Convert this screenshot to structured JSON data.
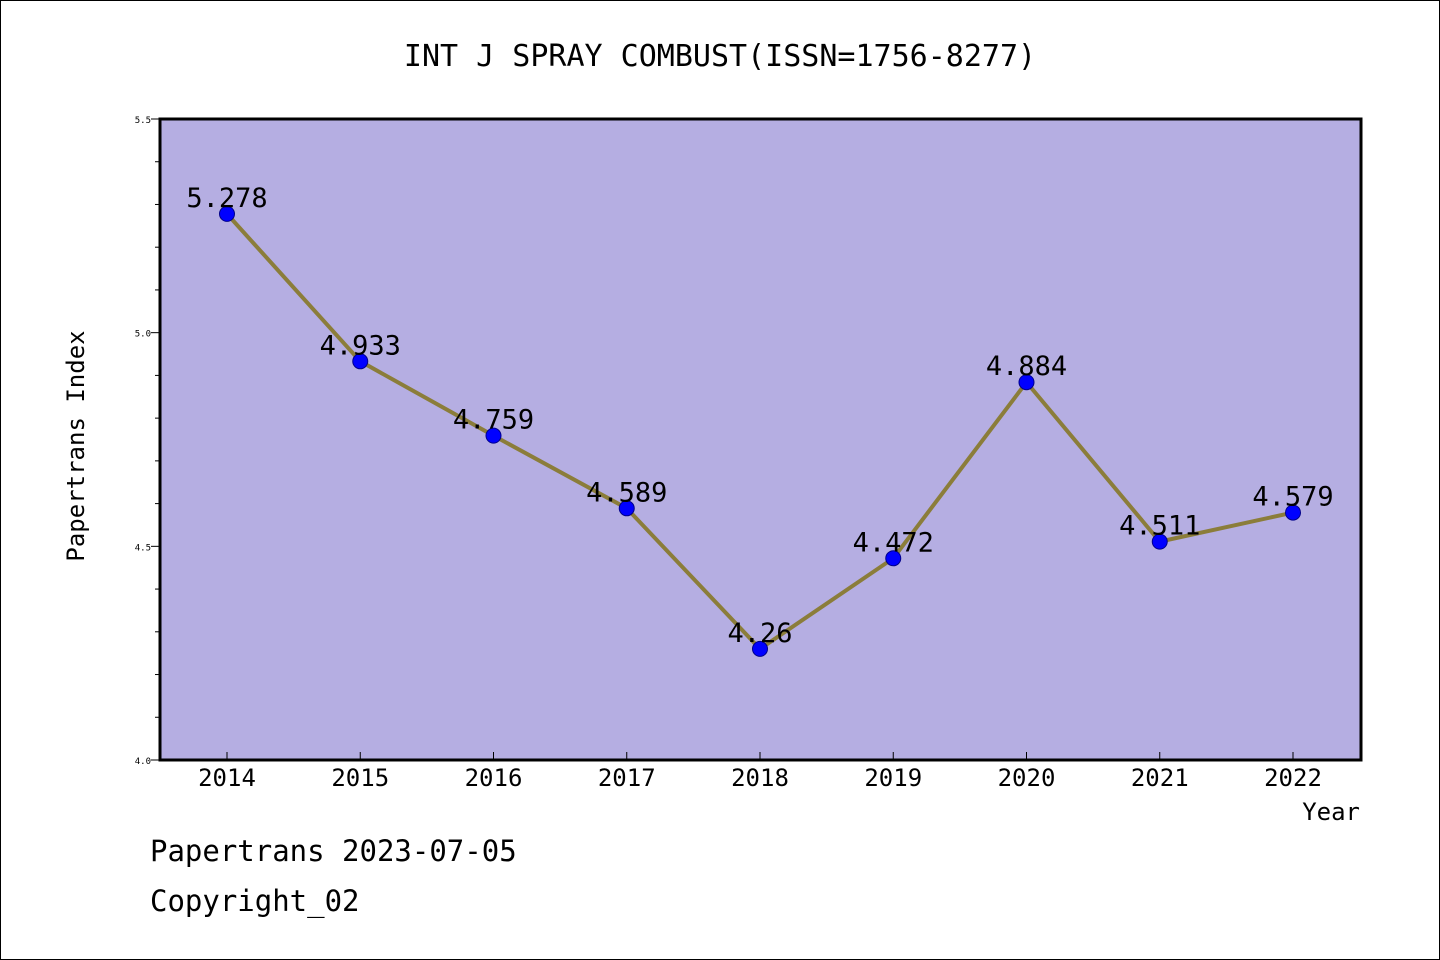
{
  "chart_data": {
    "type": "line",
    "title": "INT J SPRAY COMBUST(ISSN=1756-8277)",
    "xlabel": "Year",
    "ylabel": "Papertrans Index",
    "categories": [
      "2014",
      "2015",
      "2016",
      "2017",
      "2018",
      "2019",
      "2020",
      "2021",
      "2022"
    ],
    "series": [
      {
        "values": [
          5.278,
          4.933,
          4.759,
          4.589,
          4.26,
          4.472,
          4.884,
          4.511,
          4.579
        ],
        "data_labels": [
          "5.278",
          "4.933",
          "4.759",
          "4.589",
          "4.26",
          "4.472",
          "4.884",
          "4.511",
          "4.579"
        ]
      }
    ],
    "ylim": [
      4.0,
      5.5
    ],
    "yticks": [
      "4.0",
      "4.5",
      "5.0",
      "5.5"
    ],
    "grid": false,
    "colors": {
      "plot_background": "#b5aee2",
      "line": "#8b7d3a",
      "marker": "#0000ff"
    }
  },
  "footer": {
    "date_text": "Papertrans 2023-07-05",
    "copyright_text": "Copyright_02"
  }
}
